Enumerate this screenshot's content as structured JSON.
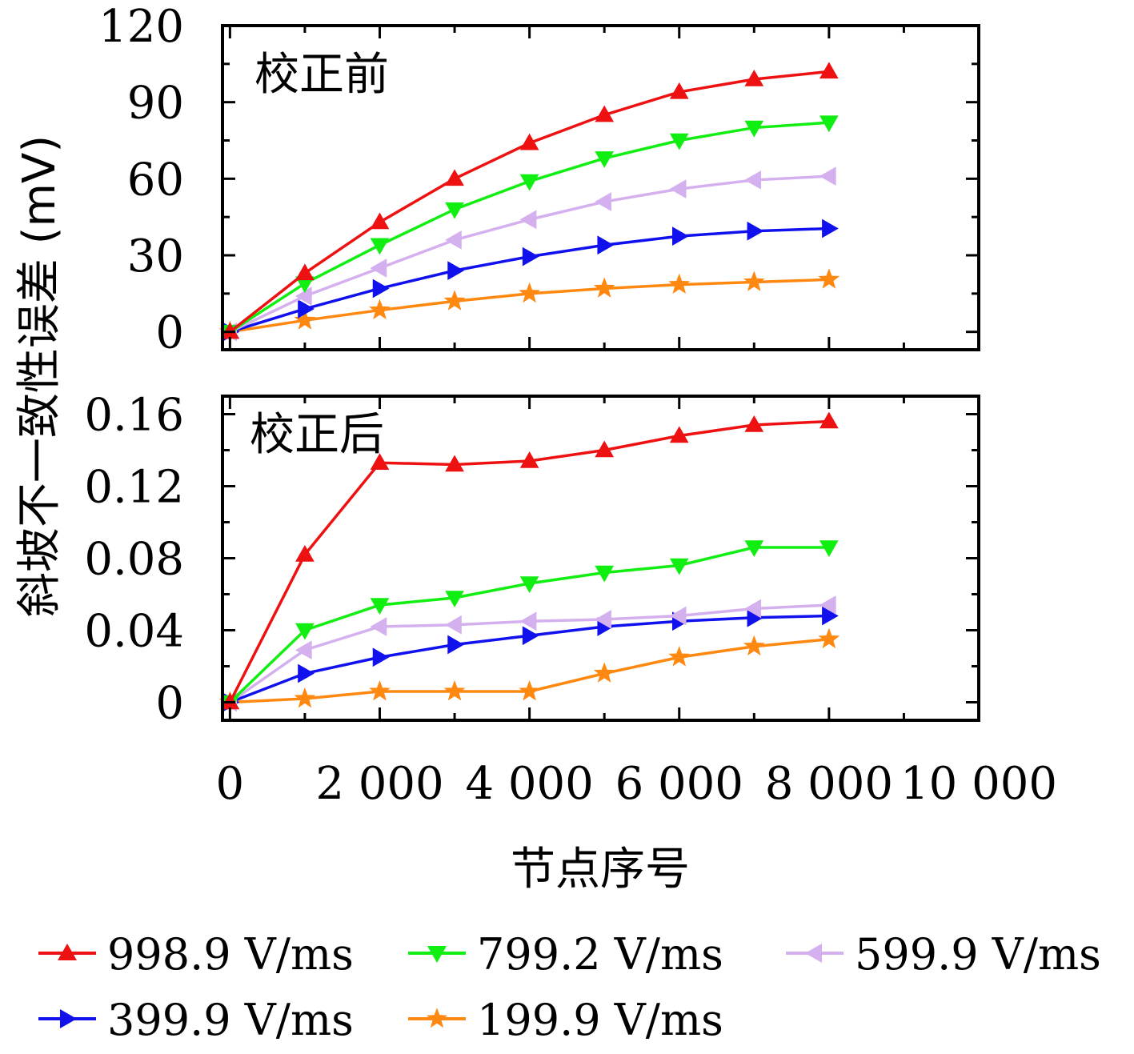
{
  "chart_data": [
    {
      "type": "line",
      "panel_label": "校正前",
      "x": [
        0,
        1000,
        2000,
        3000,
        4000,
        5000,
        6000,
        7000,
        8000
      ],
      "ylim": [
        -7,
        120
      ],
      "yticks": [
        "0",
        "30",
        "60",
        "90",
        "120"
      ],
      "series": [
        {
          "name": "998.9 V/ms",
          "values": [
            0,
            23,
            43,
            60,
            74,
            85,
            94,
            99,
            102
          ]
        },
        {
          "name": "799.2 V/ms",
          "values": [
            0,
            19,
            34,
            48,
            59,
            68,
            75,
            80,
            82
          ]
        },
        {
          "name": "599.9 V/ms",
          "values": [
            0,
            14,
            25,
            36,
            44,
            51,
            56,
            59.5,
            61
          ]
        },
        {
          "name": "399.9 V/ms",
          "values": [
            0,
            9,
            17,
            24,
            29.5,
            34,
            37.5,
            39.5,
            40.5
          ]
        },
        {
          "name": "199.9 V/ms",
          "values": [
            0,
            4.5,
            8.5,
            12,
            15,
            17,
            18.5,
            19.5,
            20.5
          ]
        }
      ]
    },
    {
      "type": "line",
      "panel_label": "校正后",
      "x": [
        0,
        1000,
        2000,
        3000,
        4000,
        5000,
        6000,
        7000,
        8000
      ],
      "ylim": [
        -0.01,
        0.17
      ],
      "yticks": [
        "0",
        "0.04",
        "0.08",
        "0.12",
        "0.16"
      ],
      "series": [
        {
          "name": "998.9 V/ms",
          "values": [
            0,
            0.082,
            0.133,
            0.132,
            0.134,
            0.14,
            0.148,
            0.154,
            0.156
          ]
        },
        {
          "name": "799.2 V/ms",
          "values": [
            0,
            0.04,
            0.054,
            0.058,
            0.066,
            0.072,
            0.076,
            0.086,
            0.086
          ]
        },
        {
          "name": "599.9 V/ms",
          "values": [
            0,
            0.029,
            0.042,
            0.043,
            0.045,
            0.046,
            0.048,
            0.052,
            0.054
          ]
        },
        {
          "name": "399.9 V/ms",
          "values": [
            0,
            0.016,
            0.025,
            0.032,
            0.037,
            0.042,
            0.045,
            0.047,
            0.048
          ]
        },
        {
          "name": "199.9 V/ms",
          "values": [
            0,
            0.002,
            0.006,
            0.006,
            0.006,
            0.016,
            0.025,
            0.031,
            0.035
          ]
        }
      ]
    }
  ],
  "shared": {
    "xlim": [
      -100,
      10000
    ],
    "xticks": [
      "0",
      "2 000",
      "4 000",
      "6 000",
      "8 000",
      "10 000"
    ],
    "xtick_values": [
      0,
      2000,
      4000,
      6000,
      8000,
      10000
    ],
    "xlabel": "节点序号",
    "ylabel": "斜坡不一致性误差 (mV)"
  },
  "legend": {
    "placement": "bottom",
    "items": [
      {
        "label": "998.9 V/ms",
        "color": "#ee1111",
        "marker": "triangle-up"
      },
      {
        "label": "799.2 V/ms",
        "color": "#11ee11",
        "marker": "triangle-down"
      },
      {
        "label": "599.9 V/ms",
        "color": "#d4b0ee",
        "marker": "triangle-left"
      },
      {
        "label": "399.9 V/ms",
        "color": "#1111ee",
        "marker": "triangle-right"
      },
      {
        "label": "199.9 V/ms",
        "color": "#ff8811",
        "marker": "star"
      }
    ]
  }
}
